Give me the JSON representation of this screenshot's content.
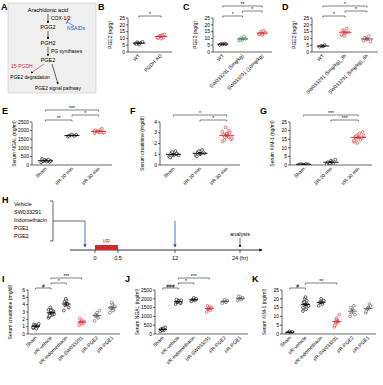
{
  "pathway": {
    "title": "A",
    "nodes": [
      "Arachidonic acid",
      "PGG2",
      "PGH2",
      "PGE2",
      "PGE2 degradation",
      "PGE2 signal pathway"
    ],
    "enzymes": [
      "COX-1/2",
      "PG synthases",
      "15-PGDH"
    ],
    "inhibitor": "NSAIDs"
  },
  "timeline": {
    "title": "H",
    "treatments": [
      "Vehicle",
      "SW033291",
      "Indomethacin",
      "PGE1",
      "PGE2"
    ],
    "ticks": [
      "0",
      "0.5",
      "12",
      "24 (hr)"
    ],
    "event": "I/R",
    "end": "analysis"
  },
  "chart_data": [
    {
      "type": "scatter",
      "title": "B",
      "y_label": "PGE2 (ng/g)",
      "categories": [
        "WT",
        "PGDH KO"
      ],
      "values": [
        [
          6.1,
          7.2,
          5.5,
          6.8,
          7.5,
          6.0,
          6.6
        ],
        [
          10.2,
          11.5,
          9.8,
          12.4,
          13.0,
          10.8,
          11.9,
          12.2,
          10.5
        ]
      ],
      "means": [
        6.5,
        11.4
      ],
      "errors": [
        0.3,
        0.4
      ],
      "colors": [
        "#000000",
        "#d62728"
      ],
      "ylim": [
        0,
        25
      ],
      "yticks": [
        0,
        5,
        10,
        15,
        20,
        25
      ],
      "annotations": [
        {
          "text": "*",
          "from": 0,
          "to": 1
        }
      ]
    },
    {
      "type": "scatter",
      "title": "C",
      "y_label": "PGE2 (ng/g)",
      "categories": [
        "WT",
        "SW033291 (5mg/kg)",
        "SW033291 (10mg/kg)"
      ],
      "values": [
        [
          5.2,
          6.0,
          5.6,
          6.3,
          5.8
        ],
        [
          8.5,
          10.2,
          9.1,
          11.4,
          9.8,
          8.8
        ],
        [
          13.0,
          14.8,
          12.5,
          15.6,
          14.1,
          13.4
        ]
      ],
      "means": [
        5.8,
        9.6,
        13.9
      ],
      "errors": [
        0.2,
        0.45,
        0.5
      ],
      "colors": [
        "#000000",
        "#3a7d44",
        "#d62728"
      ],
      "ylim": [
        0,
        25
      ],
      "yticks": [
        0,
        5,
        10,
        15,
        20,
        25
      ],
      "annotations": [
        {
          "text": "*",
          "from": 0,
          "to": 1
        },
        {
          "text": "*",
          "from": 1,
          "to": 2
        },
        {
          "text": "**",
          "from": 0,
          "to": 2
        }
      ]
    },
    {
      "type": "scatter",
      "title": "D",
      "y_label": "PGE2 (ng/g)",
      "categories": [
        "WT",
        "SW033291 (5mg/kg)_3h",
        "SW033291 (5mg/kg)_6h"
      ],
      "values": [
        [
          3.8,
          4.5,
          4.1,
          5.0
        ],
        [
          12.5,
          15.8,
          13.6,
          17.2,
          14.4,
          16.0,
          11.8
        ],
        [
          8.2,
          10.5,
          9.1,
          11.6,
          7.8,
          10.2
        ]
      ],
      "means": [
        4.4,
        14.5,
        9.6
      ],
      "errors": [
        0.25,
        0.75,
        0.6
      ],
      "colors": [
        "#000000",
        "#d62728",
        "#8b3a3a"
      ],
      "ylim": [
        0,
        25
      ],
      "yticks": [
        0,
        5,
        10,
        15,
        20,
        25
      ],
      "annotations": [
        {
          "text": "*",
          "from": 0,
          "to": 1
        },
        {
          "text": "*",
          "from": 1,
          "to": 2
        },
        {
          "text": "*",
          "from": 0,
          "to": 2
        }
      ]
    },
    {
      "type": "scatter",
      "title": "E",
      "y_label": "Serum NGAL (ng/ml)",
      "categories": [
        "Sham",
        "I/R-20 min",
        "I/R-30 min"
      ],
      "values": [
        [
          150,
          220,
          300,
          260,
          180,
          350,
          280,
          200,
          310,
          240
        ],
        [
          1650,
          1720,
          1780,
          1690,
          1750,
          1700
        ],
        [
          1850,
          1980,
          1920,
          2050,
          1880,
          2010,
          1950,
          1900,
          2100,
          1890,
          1960
        ]
      ],
      "means": [
        249,
        1715,
        1954
      ],
      "errors": [
        20,
        20,
        22
      ],
      "colors": [
        "#000000",
        "#000000",
        "#d62728"
      ],
      "ylim": [
        0,
        2500
      ],
      "yticks": [
        0,
        500,
        1000,
        1500,
        2000,
        2500
      ],
      "annotations": [
        {
          "text": "**",
          "from": 0,
          "to": 1
        },
        {
          "text": "*",
          "from": 1,
          "to": 2
        },
        {
          "text": "***",
          "from": 0,
          "to": 2
        }
      ]
    },
    {
      "type": "scatter",
      "title": "F",
      "y_label": "Serum creatinine (mg/dl)",
      "categories": [
        "Sham",
        "I/R-20 min",
        "I/R-30 min"
      ],
      "values": [
        [
          0.8,
          1.1,
          0.9,
          1.3,
          1.0,
          0.7,
          1.2,
          0.95,
          1.05,
          0.9
        ],
        [
          0.9,
          1.2,
          1.0,
          1.4,
          1.1,
          0.8,
          1.3,
          1.05
        ],
        [
          2.2,
          2.6,
          2.9,
          3.2,
          2.4,
          2.8,
          3.5,
          2.7,
          3.0,
          2.5,
          3.1,
          2.3,
          2.9,
          2.6
        ]
      ],
      "means": [
        0.99,
        1.09,
        2.76
      ],
      "errors": [
        0.06,
        0.07,
        0.1
      ],
      "colors": [
        "#000000",
        "#000000",
        "#d62728"
      ],
      "ylim": [
        0,
        4
      ],
      "yticks": [
        0,
        1,
        2,
        3,
        4
      ],
      "annotations": [
        {
          "text": "*",
          "from": 1,
          "to": 2
        },
        {
          "text": "*",
          "from": 0,
          "to": 2
        }
      ]
    },
    {
      "type": "scatter",
      "title": "G",
      "y_label": "Serum KIM-1 (ng/ml)",
      "categories": [
        "Sham",
        "I/R-20 min",
        "I/R-30 min"
      ],
      "values": [
        [
          0.3,
          0.5,
          0.2,
          0.6,
          0.4,
          0.3
        ],
        [
          0.5,
          1.2,
          2.5,
          0.8,
          3.1,
          1.6,
          0.9,
          2.0
        ],
        [
          13.5,
          15.2,
          17.8,
          14.6,
          19.2,
          16.4,
          12.8,
          18.3,
          15.9,
          17.1,
          14.2,
          16.8
        ]
      ],
      "means": [
        0.4,
        1.6,
        16.0
      ],
      "errors": [
        0.06,
        0.3,
        0.6
      ],
      "colors": [
        "#000000",
        "#000000",
        "#d62728"
      ],
      "ylim": [
        0,
        25
      ],
      "yticks": [
        0,
        5,
        10,
        15,
        20,
        25
      ],
      "annotations": [
        {
          "text": "***",
          "from": 1,
          "to": 2
        },
        {
          "text": "***",
          "from": 0,
          "to": 2
        }
      ]
    },
    {
      "type": "scatter",
      "title": "I",
      "y_label": "Serum creatinine (mg/dl)",
      "categories": [
        "Sham",
        "I/R-vehicle",
        "I/R-indomethacin",
        "I/R-SW033291",
        "I/R-PGE2",
        "I/R-PGE1"
      ],
      "values": [
        [
          0.8,
          1.0,
          1.2,
          0.9,
          1.1,
          1.3,
          1.0,
          0.7,
          1.2,
          1.4,
          0.9,
          1.1
        ],
        [
          2.2,
          2.8,
          3.4,
          2.6,
          3.1,
          2.4,
          3.6,
          2.9,
          3.0,
          2.7,
          3.3,
          2.5,
          3.2,
          2.8
        ],
        [
          3.2,
          3.9,
          4.6,
          4.1,
          3.6,
          4.4,
          4.8
        ],
        [
          1.2,
          1.6,
          1.9,
          1.4,
          1.7,
          2.1,
          1.5
        ],
        [
          1.8,
          2.4,
          2.9,
          2.2,
          3.2,
          2.6
        ],
        [
          2.9,
          3.5,
          4.1,
          3.3,
          3.8,
          3.6,
          4.3,
          3.2
        ]
      ],
      "means": [
        1.07,
        2.89,
        4.09,
        1.63,
        2.52,
        3.59
      ],
      "errors": [
        0.06,
        0.1,
        0.2,
        0.11,
        0.2,
        0.17
      ],
      "colors": [
        "#000000",
        "#000000",
        "#000000",
        "#d62728",
        "#555555",
        "#555555"
      ],
      "ylim": [
        0,
        6
      ],
      "yticks": [
        0,
        1,
        2,
        3,
        4,
        5,
        6
      ],
      "annotations": [
        {
          "text": "#",
          "from": 0,
          "to": 1
        },
        {
          "text": "*",
          "from": 1,
          "to": 2
        },
        {
          "text": "***",
          "from": 1,
          "to": 3
        }
      ]
    },
    {
      "type": "scatter",
      "title": "J",
      "y_label": "Serum NGAL (ng/ml)",
      "categories": [
        "Sham",
        "I/R-vehicle",
        "I/R-indomethacin",
        "I/R-SW033291",
        "I/R-PGE2",
        "I/R-PGE1"
      ],
      "values": [
        [
          150,
          250,
          320,
          200,
          380,
          280,
          230,
          300
        ],
        [
          1700,
          1800,
          1900,
          1850,
          1750,
          1950,
          1820,
          1880,
          1780,
          1920
        ],
        [
          1850,
          1950,
          2050,
          1900,
          2000
        ],
        [
          1250,
          1400,
          1550,
          1350,
          1500,
          1600,
          1450
        ],
        [
          1750,
          1850,
          1950,
          1800,
          1900
        ],
        [
          1900,
          2000,
          2100,
          1950,
          2050,
          2150
        ]
      ],
      "means": [
        264,
        1835,
        1950,
        1443,
        1850,
        2025
      ],
      "errors": [
        27,
        25,
        35,
        45,
        35,
        38
      ],
      "colors": [
        "#000000",
        "#000000",
        "#000000",
        "#d62728",
        "#555555",
        "#555555"
      ],
      "ylim": [
        0,
        2500
      ],
      "yticks": [
        0,
        500,
        1000,
        1500,
        2000,
        2500
      ],
      "annotations": [
        {
          "text": "###",
          "from": 0,
          "to": 1
        },
        {
          "text": "*",
          "from": 1,
          "to": 2
        },
        {
          "text": "***",
          "from": 1,
          "to": 3
        }
      ]
    },
    {
      "type": "scatter",
      "title": "K",
      "y_label": "Serum KIM-1 (ng/ml)",
      "categories": [
        "Sham",
        "I/R-vehicle",
        "I/R-indomethacin",
        "I/R-SW033291",
        "I/R-PGE2",
        "I/R-PGE1"
      ],
      "values": [
        [
          0.5,
          1.0,
          1.5,
          0.8,
          1.2,
          0.7
        ],
        [
          13,
          15,
          17,
          19,
          16,
          18,
          20,
          14,
          17,
          16,
          15,
          18,
          21
        ],
        [
          16,
          18,
          20,
          17,
          19
        ],
        [
          4,
          6,
          9,
          7,
          11,
          5,
          8
        ],
        [
          10,
          12,
          14,
          16,
          11,
          15
        ],
        [
          12,
          14,
          15,
          17,
          16,
          13
        ]
      ],
      "means": [
        0.95,
        16.8,
        18,
        7.1,
        13,
        14.5
      ],
      "errors": [
        0.15,
        0.6,
        0.7,
        0.9,
        0.9,
        0.8
      ],
      "colors": [
        "#000000",
        "#000000",
        "#000000",
        "#d62728",
        "#555555",
        "#555555"
      ],
      "ylim": [
        0,
        25
      ],
      "yticks": [
        0,
        5,
        10,
        15,
        20,
        25
      ],
      "annotations": [
        {
          "text": "#",
          "from": 0,
          "to": 1
        },
        {
          "text": "**",
          "from": 1,
          "to": 3
        }
      ]
    }
  ]
}
